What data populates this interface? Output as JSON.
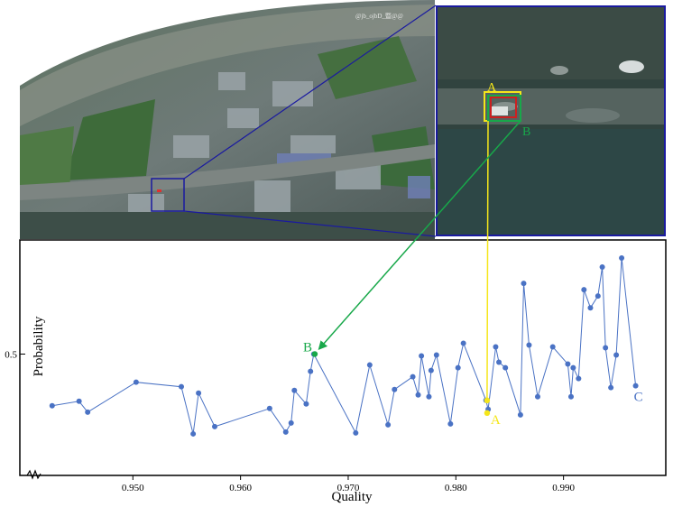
{
  "photo": {
    "watermark": "@jb_ojbD_暨@@",
    "description_icon": "aerial-fisheye-photo"
  },
  "callouts": {
    "label_a": "A",
    "label_b": "B",
    "label_c": "C",
    "color_a": "#f5e61a",
    "color_b": "#18a84a",
    "color_c": "#4a72c4",
    "zoom_frame_color": "#1a1aa0"
  },
  "chart_data": {
    "type": "line",
    "xlabel": "Quality",
    "ylabel": "Probability",
    "xlim": [
      0.9395,
      0.9995
    ],
    "ylim": [
      0.0,
      1.0
    ],
    "x_ticks": [
      0.95,
      0.96,
      0.97,
      0.98,
      0.99
    ],
    "x_tick_labels": [
      "0.950",
      "0.960",
      "0.970",
      "0.980",
      "0.990"
    ],
    "y_ticks": [
      0.5
    ],
    "y_tick_labels": [
      "0.5"
    ],
    "axis_break": true,
    "grid": false,
    "series": [
      {
        "color": "#4a72c4",
        "x": [
          0.9425,
          0.945,
          0.9458,
          0.9503,
          0.9545,
          0.9556,
          0.9561,
          0.9576,
          0.9627,
          0.9642,
          0.9647,
          0.965,
          0.9661,
          0.9665,
          0.9668,
          0.9707,
          0.972,
          0.9737,
          0.9743,
          0.976,
          0.9765,
          0.9768,
          0.9775,
          0.9777,
          0.9782,
          0.9795,
          0.9802,
          0.9807,
          0.9828,
          0.983,
          0.9837,
          0.984,
          0.9846,
          0.986,
          0.9863,
          0.9868,
          0.9876,
          0.989,
          0.9904,
          0.9907,
          0.9909,
          0.9914,
          0.9919,
          0.9925,
          0.9932,
          0.9936,
          0.9939,
          0.9944,
          0.9949,
          0.9954,
          0.9967
        ],
        "y": [
          0.215,
          0.24,
          0.18,
          0.345,
          0.32,
          0.06,
          0.285,
          0.1,
          0.2,
          0.07,
          0.12,
          0.3,
          0.225,
          0.405,
          0.5,
          0.065,
          0.44,
          0.11,
          0.305,
          0.375,
          0.275,
          0.49,
          0.265,
          0.41,
          0.495,
          0.115,
          0.425,
          0.56,
          0.245,
          0.195,
          0.54,
          0.455,
          0.425,
          0.165,
          0.89,
          0.55,
          0.265,
          0.54,
          0.445,
          0.265,
          0.425,
          0.365,
          0.855,
          0.755,
          0.82,
          0.98,
          0.535,
          0.315,
          0.495,
          1.03,
          0.325
        ]
      }
    ],
    "highlight_points": [
      {
        "label": "A",
        "x": 0.9829,
        "y": 0.175
      },
      {
        "label": "B",
        "x": 0.9669,
        "y": 0.5
      },
      {
        "label": "C",
        "x": 0.9967,
        "y": 0.325
      }
    ]
  }
}
